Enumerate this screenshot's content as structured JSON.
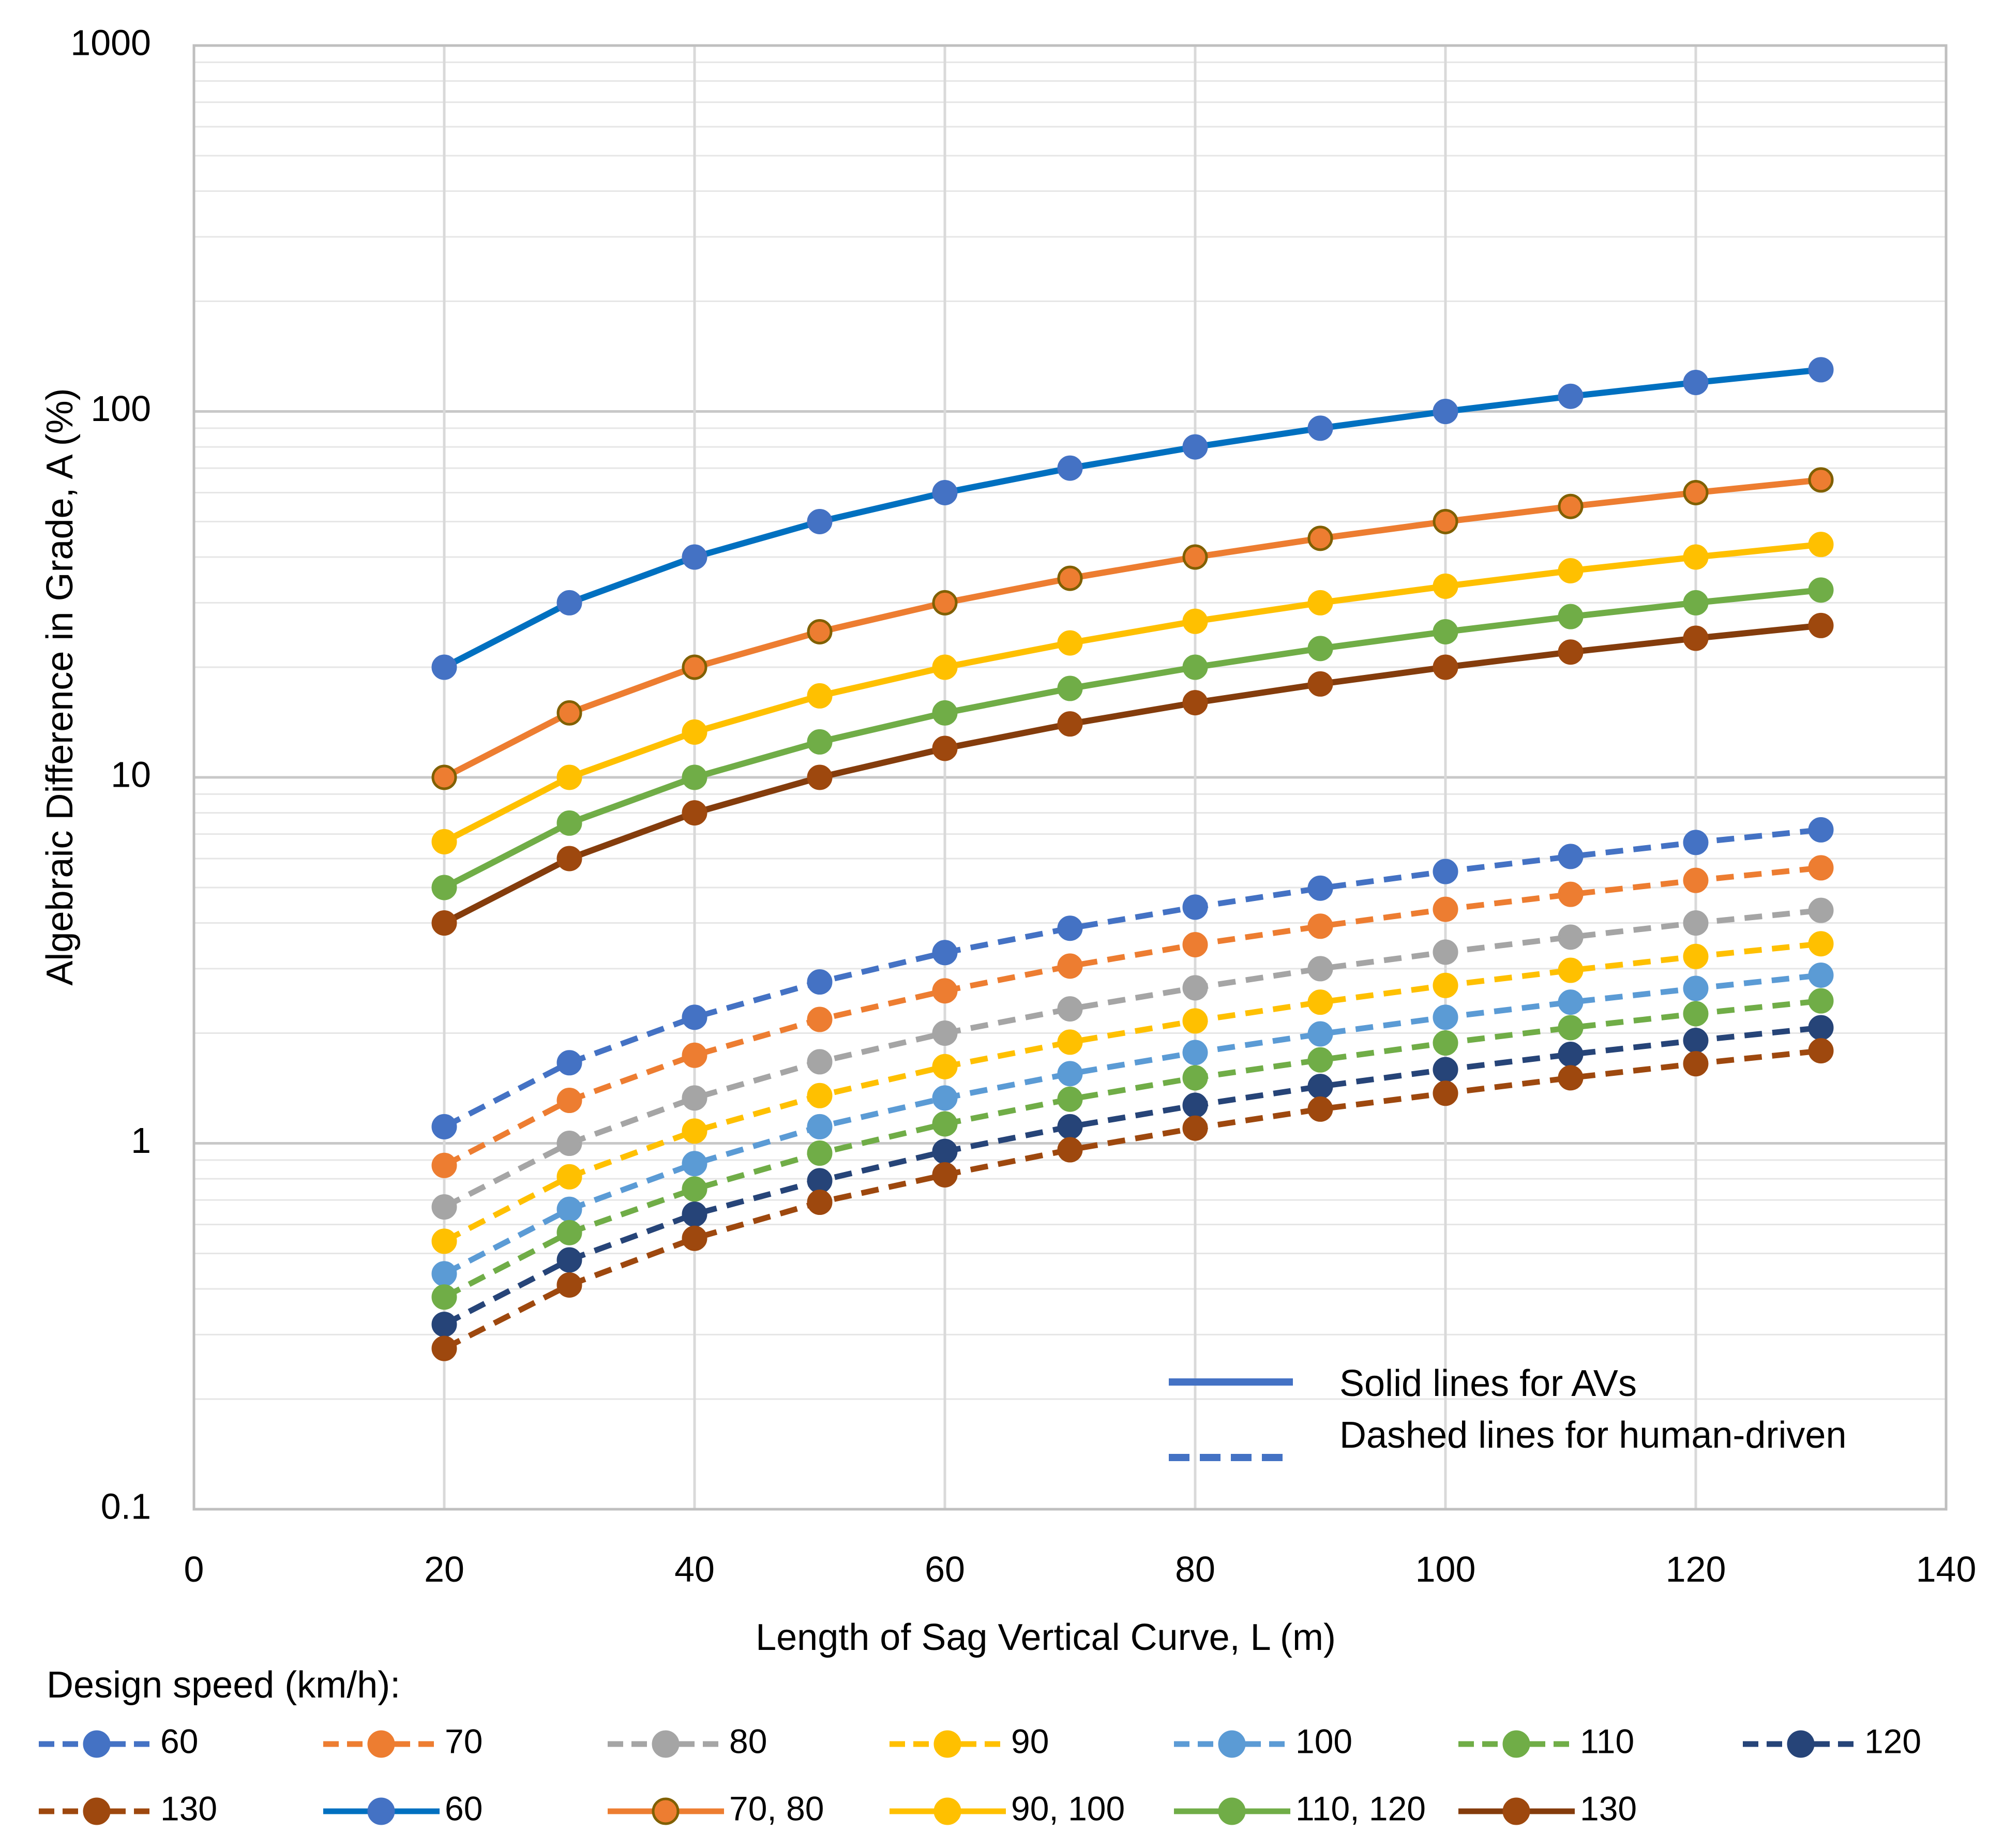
{
  "chart_data": {
    "type": "line",
    "yscale": "log",
    "xlabel": "Length of Sag Vertical Curve, L (m)",
    "ylabel": "Algebraic Difference in Grade, A (%)",
    "xlim": [
      0,
      140
    ],
    "ylim": [
      0.1,
      1000
    ],
    "x_ticks": [
      "0",
      "20",
      "40",
      "60",
      "80",
      "100",
      "120",
      "140"
    ],
    "y_ticks": [
      "0.1",
      "1",
      "10",
      "100",
      "1000"
    ],
    "x": [
      20,
      30,
      40,
      50,
      60,
      70,
      80,
      90,
      100,
      110,
      120,
      130
    ],
    "annotation": {
      "solid": "Solid lines for AVs",
      "dashed": "Dashed lines for human-driven"
    },
    "legend_title": "Design speed (km/h):",
    "series": [
      {
        "name": "60",
        "style": "dashed",
        "color": "#4472C4",
        "values": [
          1.11,
          1.66,
          2.21,
          2.76,
          3.32,
          3.87,
          4.42,
          4.98,
          5.53,
          6.08,
          6.64,
          7.19
        ]
      },
      {
        "name": "70",
        "style": "dashed",
        "color": "#ED7D31",
        "values": [
          0.87,
          1.31,
          1.74,
          2.18,
          2.61,
          3.05,
          3.49,
          3.92,
          4.36,
          4.79,
          5.23,
          5.66
        ]
      },
      {
        "name": "80",
        "style": "dashed",
        "color": "#A5A5A5",
        "values": [
          0.67,
          1.0,
          1.33,
          1.67,
          2.0,
          2.33,
          2.66,
          3.0,
          3.33,
          3.66,
          4.0,
          4.33
        ]
      },
      {
        "name": "90",
        "style": "dashed",
        "color": "#FFC000",
        "values": [
          0.54,
          0.81,
          1.08,
          1.35,
          1.62,
          1.89,
          2.16,
          2.43,
          2.7,
          2.97,
          3.24,
          3.51
        ]
      },
      {
        "name": "100",
        "style": "dashed",
        "color": "#5B9BD5",
        "values": [
          0.44,
          0.66,
          0.88,
          1.11,
          1.33,
          1.55,
          1.77,
          1.99,
          2.21,
          2.43,
          2.65,
          2.88
        ]
      },
      {
        "name": "110",
        "style": "dashed",
        "color": "#70AD47",
        "values": [
          0.38,
          0.57,
          0.75,
          0.94,
          1.13,
          1.32,
          1.51,
          1.69,
          1.88,
          2.07,
          2.26,
          2.45
        ]
      },
      {
        "name": "120",
        "style": "dashed",
        "color": "#264478",
        "values": [
          0.32,
          0.48,
          0.64,
          0.79,
          0.95,
          1.11,
          1.27,
          1.43,
          1.59,
          1.75,
          1.91,
          2.07
        ]
      },
      {
        "name": "130",
        "style": "dashed",
        "color": "#9E480E",
        "values": [
          0.275,
          0.41,
          0.55,
          0.69,
          0.82,
          0.96,
          1.1,
          1.24,
          1.37,
          1.51,
          1.65,
          1.79
        ]
      },
      {
        "name": "60",
        "style": "solid",
        "color": "#0070C0",
        "marker": "#4472C4",
        "values": [
          20,
          30,
          40,
          50,
          60,
          70,
          80,
          90,
          100,
          110,
          120,
          130
        ]
      },
      {
        "name": "70, 80",
        "style": "solid",
        "color": "#ED7D31",
        "marker": "#ED7D31",
        "marker_edge": "#806000",
        "values": [
          10,
          15,
          20,
          25,
          30,
          35,
          40,
          45,
          50,
          55,
          60,
          65
        ]
      },
      {
        "name": "90, 100",
        "style": "solid",
        "color": "#FFC000",
        "marker": "#FFC000",
        "values": [
          6.67,
          10,
          13.3,
          16.7,
          20,
          23.3,
          26.7,
          30,
          33.3,
          36.7,
          40,
          43.3
        ]
      },
      {
        "name": "110, 120",
        "style": "solid",
        "color": "#70AD47",
        "marker": "#70AD47",
        "values": [
          5,
          7.5,
          10,
          12.5,
          15,
          17.5,
          20,
          22.5,
          25,
          27.5,
          30,
          32.5
        ]
      },
      {
        "name": "130",
        "style": "solid",
        "color": "#843C0C",
        "marker": "#9E480E",
        "values": [
          4,
          6,
          8,
          10,
          12,
          14,
          16,
          18,
          20,
          22,
          24,
          26
        ]
      }
    ]
  }
}
